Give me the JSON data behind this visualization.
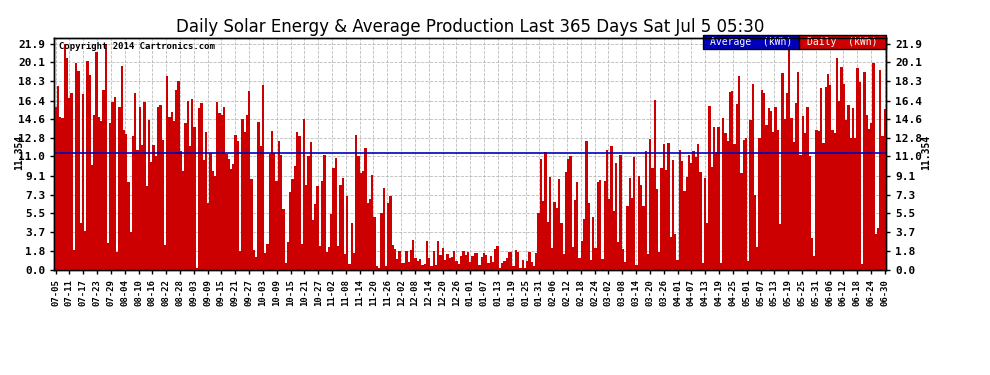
{
  "title": "Daily Solar Energy & Average Production Last 365 Days Sat Jul 5 05:30",
  "copyright": "Copyright 2014 Cartronics.com",
  "average_value": 11.354,
  "average_label": "11.354",
  "yticks": [
    0.0,
    1.8,
    3.7,
    5.5,
    7.3,
    9.1,
    11.0,
    12.8,
    14.6,
    16.4,
    18.3,
    20.1,
    21.9
  ],
  "ymax": 22.5,
  "ymin": 0.0,
  "bar_color": "#cc0000",
  "average_line_color": "#0000bb",
  "background_color": "#ffffff",
  "grid_color": "#aaaaaa",
  "title_fontsize": 12,
  "legend_avg_bg": "#0000bb",
  "legend_daily_bg": "#cc0000",
  "legend_text_color": "#ffffff",
  "xtick_labels": [
    "07-05",
    "07-11",
    "07-17",
    "07-23",
    "07-29",
    "08-04",
    "08-10",
    "08-16",
    "08-22",
    "08-28",
    "09-03",
    "09-09",
    "09-15",
    "09-21",
    "09-27",
    "10-03",
    "10-09",
    "10-15",
    "10-21",
    "10-27",
    "11-02",
    "11-08",
    "11-14",
    "11-20",
    "11-26",
    "12-02",
    "12-08",
    "12-14",
    "12-20",
    "12-26",
    "01-01",
    "01-07",
    "01-13",
    "01-19",
    "01-25",
    "01-31",
    "02-06",
    "02-12",
    "02-18",
    "02-24",
    "03-02",
    "03-08",
    "03-14",
    "03-20",
    "03-26",
    "04-01",
    "04-07",
    "04-13",
    "04-19",
    "04-25",
    "05-01",
    "05-07",
    "05-13",
    "05-19",
    "05-25",
    "05-31",
    "06-06",
    "06-12",
    "06-18",
    "06-24",
    "06-30"
  ],
  "num_days": 365
}
